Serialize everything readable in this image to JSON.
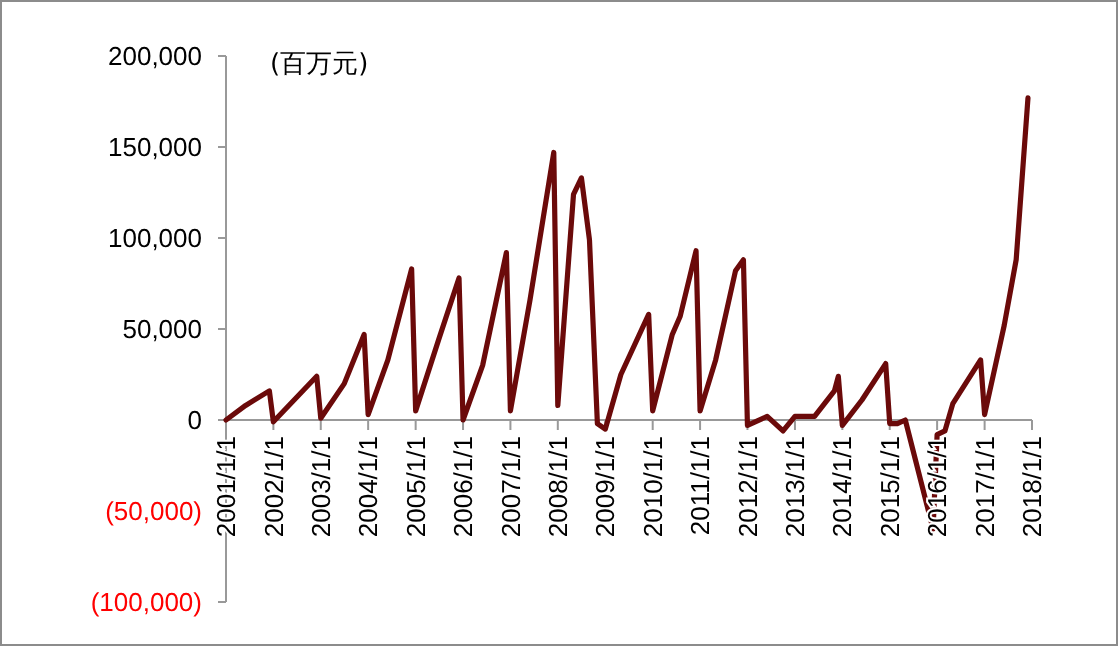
{
  "chart_data": {
    "type": "line",
    "annotations": [
      "(百万元)"
    ],
    "x": [
      "2001-01",
      "2001-06",
      "2001-12",
      "2002-01",
      "2002-12",
      "2003-01",
      "2003-07",
      "2003-12",
      "2004-01",
      "2004-06",
      "2004-12",
      "2005-01",
      "2005-07",
      "2005-12",
      "2006-01",
      "2006-06",
      "2006-12",
      "2007-01",
      "2007-06",
      "2007-12",
      "2008-01",
      "2008-05",
      "2008-07",
      "2008-09",
      "2008-11",
      "2009-01",
      "2009-05",
      "2009-12",
      "2010-01",
      "2010-06",
      "2010-08",
      "2010-12",
      "2011-01",
      "2011-05",
      "2011-10",
      "2011-12",
      "2012-01",
      "2012-06",
      "2012-10",
      "2013-01",
      "2013-06",
      "2013-11",
      "2013-12",
      "2014-01",
      "2014-06",
      "2014-12",
      "2015-01",
      "2015-03",
      "2015-05",
      "2015-12",
      "2016-01",
      "2016-03",
      "2016-05",
      "2016-12",
      "2017-01",
      "2017-06",
      "2017-09",
      "2017-12"
    ],
    "series": [
      {
        "color": "#6b0a0a",
        "values": [
          0,
          8000,
          16000,
          -1000,
          24000,
          1000,
          20000,
          47000,
          3000,
          33000,
          83000,
          5000,
          45000,
          78000,
          0,
          30000,
          92000,
          5000,
          66000,
          147000,
          8000,
          124000,
          133000,
          99000,
          -2000,
          -5000,
          25000,
          58000,
          5000,
          47000,
          57000,
          93000,
          5000,
          33000,
          82000,
          88000,
          -3000,
          2000,
          -6000,
          2000,
          2000,
          16000,
          24000,
          -3000,
          11000,
          31000,
          -2000,
          -2000,
          0,
          -60000,
          -8000,
          -6000,
          9000,
          33000,
          3000,
          52000,
          88000,
          177000
        ]
      }
    ],
    "xlim": [
      "2001-01-01",
      "2018-01-01"
    ],
    "xticks": [
      {
        "value": "2001-01-01",
        "label": "2001/1/1"
      },
      {
        "value": "2002-01-01",
        "label": "2002/1/1"
      },
      {
        "value": "2003-01-01",
        "label": "2003/1/1"
      },
      {
        "value": "2004-01-01",
        "label": "2004/1/1"
      },
      {
        "value": "2005-01-01",
        "label": "2005/1/1"
      },
      {
        "value": "2006-01-01",
        "label": "2006/1/1"
      },
      {
        "value": "2007-01-01",
        "label": "2007/1/1"
      },
      {
        "value": "2008-01-01",
        "label": "2008/1/1"
      },
      {
        "value": "2009-01-01",
        "label": "2009/1/1"
      },
      {
        "value": "2010-01-01",
        "label": "2010/1/1"
      },
      {
        "value": "2011-01-01",
        "label": "2011/1/1"
      },
      {
        "value": "2012-01-01",
        "label": "2012/1/1"
      },
      {
        "value": "2013-01-01",
        "label": "2013/1/1"
      },
      {
        "value": "2014-01-01",
        "label": "2014/1/1"
      },
      {
        "value": "2015-01-01",
        "label": "2015/1/1"
      },
      {
        "value": "2016-01-01",
        "label": "2016/1/1"
      },
      {
        "value": "2017-01-01",
        "label": "2017/1/1"
      },
      {
        "value": "2018-01-01",
        "label": "2018/1/1"
      }
    ],
    "ylim": [
      -100000,
      200000
    ],
    "yticks": [
      {
        "value": -100000,
        "label": "(100,000)"
      },
      {
        "value": -50000,
        "label": "(50,000)"
      },
      0,
      {
        "value": 50000,
        "label": "50,000"
      },
      {
        "value": 100000,
        "label": "100,000"
      },
      {
        "value": 150000,
        "label": "150,000"
      },
      {
        "value": 200000,
        "label": "200,000"
      }
    ],
    "grid": false,
    "marker": "none",
    "line_style": "solid"
  }
}
